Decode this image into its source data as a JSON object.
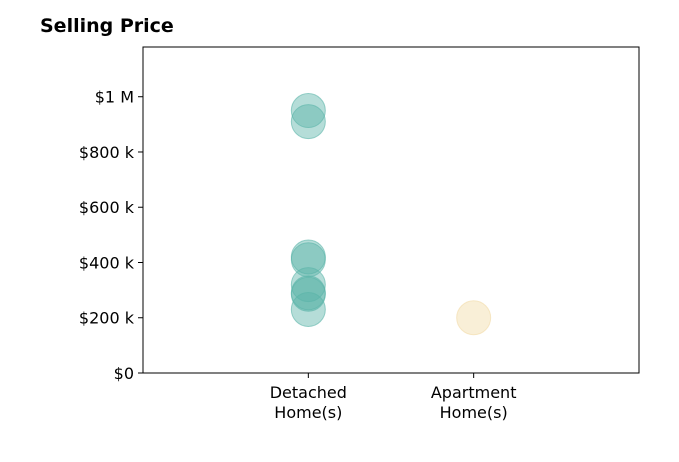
{
  "chart_data": {
    "type": "scatter",
    "title": "Selling Price",
    "xlabel": "",
    "ylabel": "",
    "categories": [
      [
        "Detached",
        "Home(s)"
      ],
      [
        "Apartment",
        "Home(s)"
      ]
    ],
    "xlim": [
      0,
      3
    ],
    "ylim": [
      0,
      1180000
    ],
    "yticks": [
      0,
      200000,
      400000,
      600000,
      800000,
      1000000
    ],
    "ytick_labels": [
      "$0",
      "$200 k",
      "$400 k",
      "$600 k",
      "$800 k",
      "$1 M"
    ],
    "grid": false,
    "legend": false,
    "series": [
      {
        "category": 1,
        "color": "#5ab4a8",
        "values": [
          950000,
          910000,
          420000,
          410000,
          320000,
          290000,
          285000,
          230000
        ]
      },
      {
        "category": 2,
        "color": "#f2dba6",
        "values": [
          200000
        ]
      }
    ]
  }
}
